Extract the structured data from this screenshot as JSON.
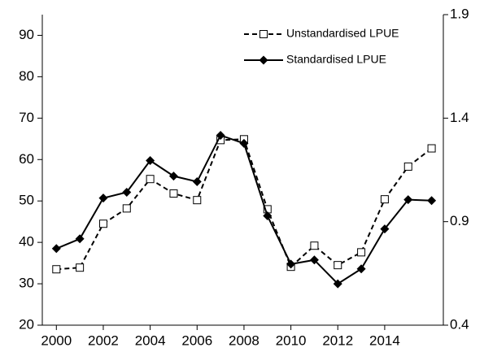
{
  "chart_data": {
    "type": "line",
    "x": [
      2000,
      2001,
      2002,
      2003,
      2004,
      2005,
      2006,
      2007,
      2008,
      2009,
      2010,
      2011,
      2012,
      2013,
      2014,
      2015,
      2016
    ],
    "series": [
      {
        "name": "Unstandardised LPUE",
        "color": "#000000",
        "axis": "y",
        "dashed": true,
        "marker": "square-open",
        "values": [
          33.5,
          33.9,
          44.5,
          48.2,
          55.3,
          51.8,
          50.2,
          64.7,
          64.9,
          48.0,
          34.1,
          39.2,
          34.5,
          37.6,
          50.4,
          58.3,
          62.7
        ]
      },
      {
        "name": "Standardised LPUE",
        "color": "#000000",
        "axis": "y2",
        "dashed": false,
        "marker": "diamond-filled",
        "values": [
          0.77,
          0.817,
          1.014,
          1.042,
          1.195,
          1.12,
          1.093,
          1.317,
          1.278,
          0.928,
          0.695,
          0.715,
          0.6,
          0.672,
          0.865,
          1.006,
          1.002
        ]
      }
    ],
    "xlim": [
      1999.4,
      2016.5
    ],
    "xticks": [
      2000,
      2002,
      2004,
      2006,
      2008,
      2010,
      2012,
      2014
    ],
    "ylim": [
      20,
      95
    ],
    "yticks": [
      20,
      30,
      40,
      50,
      60,
      70,
      80,
      90
    ],
    "y2lim": [
      0.4,
      1.9
    ],
    "y2ticks": [
      0.4,
      0.9,
      1.4,
      1.9
    ],
    "grid": false,
    "legend": "upper-right"
  }
}
